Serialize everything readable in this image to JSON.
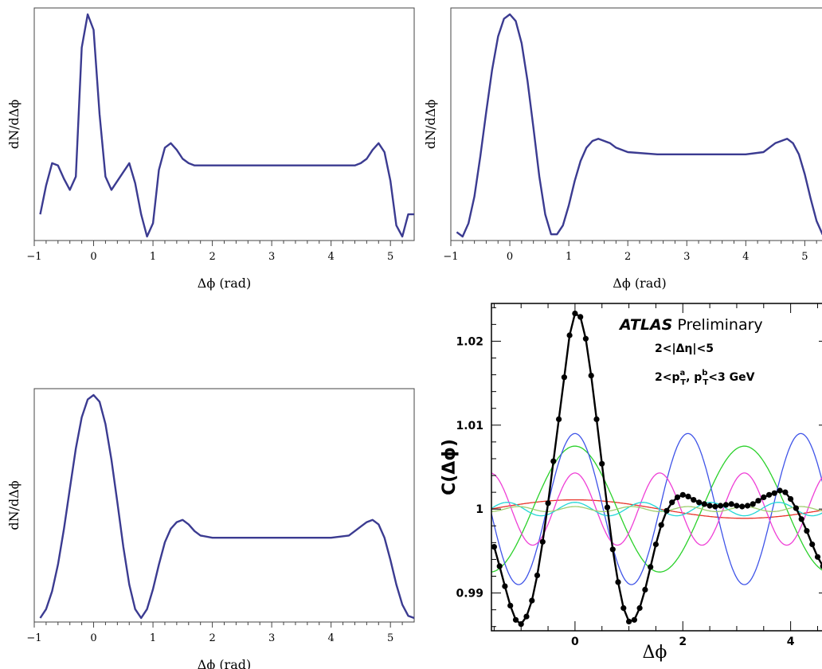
{
  "chart_data": [
    {
      "type": "line",
      "panel": "top-left",
      "title": "",
      "xlabel": "Δϕ (rad)",
      "ylabel": "dN/dΔϕ",
      "xlim": [
        -1,
        5.4
      ],
      "ylim": [
        0,
        1
      ],
      "xticks": [
        -1,
        0,
        1,
        2,
        3,
        4,
        5
      ],
      "yticks": [],
      "grid": false,
      "legend": "none",
      "series": [
        {
          "color": "#3b3b91",
          "x": [
            -0.9,
            -0.8,
            -0.7,
            -0.6,
            -0.5,
            -0.4,
            -0.3,
            -0.2,
            -0.1,
            0,
            0.1,
            0.2,
            0.3,
            0.4,
            0.5,
            0.6,
            0.7,
            0.8,
            0.9,
            1.0,
            1.1,
            1.2,
            1.3,
            1.4,
            1.5,
            1.6,
            1.7,
            1.8,
            2.0,
            2.5,
            3.0,
            3.5,
            4.0,
            4.4,
            4.5,
            4.6,
            4.7,
            4.8,
            4.9,
            5.0,
            5.1,
            5.2,
            5.3,
            5.4
          ],
          "y": [
            0.1,
            0.23,
            0.33,
            0.32,
            0.26,
            0.21,
            0.27,
            0.85,
            1.0,
            0.93,
            0.55,
            0.27,
            0.21,
            0.25,
            0.29,
            0.33,
            0.24,
            0.1,
            0.0,
            0.06,
            0.3,
            0.4,
            0.42,
            0.39,
            0.35,
            0.33,
            0.32,
            0.32,
            0.32,
            0.32,
            0.32,
            0.32,
            0.32,
            0.32,
            0.33,
            0.35,
            0.39,
            0.42,
            0.38,
            0.25,
            0.05,
            0.0,
            0.1,
            0.1
          ]
        }
      ]
    },
    {
      "type": "line",
      "panel": "top-right",
      "title": "",
      "xlabel": "Δϕ (rad)",
      "ylabel": "dN/dΔϕ",
      "xlim": [
        -1,
        5.4
      ],
      "ylim": [
        0,
        1
      ],
      "xticks": [
        -1,
        0,
        1,
        2,
        3,
        4,
        5
      ],
      "yticks": [],
      "grid": false,
      "legend": "none",
      "series": [
        {
          "color": "#3b3b91",
          "x": [
            -0.9,
            -0.8,
            -0.7,
            -0.6,
            -0.5,
            -0.4,
            -0.3,
            -0.2,
            -0.1,
            0,
            0.1,
            0.2,
            0.3,
            0.4,
            0.5,
            0.6,
            0.7,
            0.8,
            0.9,
            1.0,
            1.1,
            1.2,
            1.3,
            1.4,
            1.5,
            1.6,
            1.7,
            1.8,
            2.0,
            2.5,
            3.0,
            3.5,
            4.0,
            4.3,
            4.4,
            4.5,
            4.6,
            4.7,
            4.8,
            4.9,
            5.0,
            5.1,
            5.2,
            5.3,
            5.4
          ],
          "y": [
            0.02,
            0.0,
            0.06,
            0.18,
            0.36,
            0.56,
            0.75,
            0.9,
            0.98,
            1.0,
            0.97,
            0.87,
            0.7,
            0.49,
            0.27,
            0.1,
            0.01,
            0.01,
            0.05,
            0.14,
            0.25,
            0.34,
            0.4,
            0.43,
            0.44,
            0.43,
            0.42,
            0.4,
            0.38,
            0.37,
            0.37,
            0.37,
            0.37,
            0.38,
            0.4,
            0.42,
            0.43,
            0.44,
            0.42,
            0.37,
            0.28,
            0.17,
            0.07,
            0.01,
            0.0
          ]
        }
      ]
    },
    {
      "type": "line",
      "panel": "bottom-left",
      "title": "",
      "xlabel": "Δϕ (rad)",
      "ylabel": "dN/dΔϕ",
      "xlim": [
        -1,
        5.4
      ],
      "ylim": [
        0,
        1
      ],
      "xticks": [
        -1,
        0,
        1,
        2,
        3,
        4,
        5
      ],
      "yticks": [],
      "grid": false,
      "legend": "none",
      "series": [
        {
          "color": "#3b3b91",
          "x": [
            -0.9,
            -0.8,
            -0.7,
            -0.6,
            -0.5,
            -0.4,
            -0.3,
            -0.2,
            -0.1,
            0,
            0.1,
            0.2,
            0.3,
            0.4,
            0.5,
            0.6,
            0.7,
            0.8,
            0.9,
            1.0,
            1.1,
            1.2,
            1.3,
            1.4,
            1.5,
            1.6,
            1.7,
            1.8,
            2.0,
            2.5,
            3.0,
            3.5,
            4.0,
            4.3,
            4.4,
            4.5,
            4.6,
            4.7,
            4.8,
            4.9,
            5.0,
            5.1,
            5.2,
            5.3,
            5.4
          ],
          "y": [
            0.0,
            0.04,
            0.12,
            0.24,
            0.4,
            0.58,
            0.76,
            0.9,
            0.98,
            1.0,
            0.97,
            0.87,
            0.71,
            0.52,
            0.32,
            0.15,
            0.04,
            0.0,
            0.04,
            0.13,
            0.24,
            0.34,
            0.4,
            0.43,
            0.44,
            0.42,
            0.39,
            0.37,
            0.36,
            0.36,
            0.36,
            0.36,
            0.36,
            0.37,
            0.39,
            0.41,
            0.43,
            0.44,
            0.42,
            0.36,
            0.26,
            0.15,
            0.06,
            0.01,
            0.0
          ]
        }
      ]
    },
    {
      "type": "line",
      "panel": "bottom-right",
      "title": "ATLAS Preliminary",
      "annotations": [
        "2<|Δη|<5",
        "2<p",
        "a",
        "T",
        ", p",
        "b",
        "T",
        "<3 GeV"
      ],
      "xlabel": "Δϕ",
      "ylabel": "C(Δϕ)",
      "xlim": [
        -1.55,
        4.7
      ],
      "ylim": [
        0.9855,
        1.0245
      ],
      "xticks": [
        0,
        2,
        4
      ],
      "yticks": [
        0.99,
        1,
        1.01,
        1.02
      ],
      "ytick_labels": [
        "0.99",
        "1",
        "1.01",
        "1.02"
      ],
      "grid": false,
      "legend": "none",
      "series": [
        {
          "harmonic": 1,
          "amplitude": 0.0011,
          "color": "#e8332a"
        },
        {
          "harmonic": 2,
          "amplitude": 0.0075,
          "color": "#2ad12a"
        },
        {
          "harmonic": 3,
          "amplitude": 0.009,
          "color": "#3f54e8"
        },
        {
          "harmonic": 4,
          "amplitude": 0.0043,
          "color": "#ef3fd6"
        },
        {
          "harmonic": 5,
          "amplitude": 0.0008,
          "color": "#22d6d6"
        },
        {
          "harmonic": 6,
          "amplitude": 0.0003,
          "color": "#9fce6e"
        }
      ],
      "data_points": {
        "color": "#000000",
        "x": [
          -1.5,
          -1.4,
          -1.3,
          -1.2,
          -1.1,
          -1.0,
          -0.9,
          -0.8,
          -0.7,
          -0.6,
          -0.5,
          -0.4,
          -0.3,
          -0.2,
          -0.1,
          0.0,
          0.1,
          0.2,
          0.3,
          0.4,
          0.5,
          0.6,
          0.7,
          0.8,
          0.9,
          1.0,
          1.1,
          1.2,
          1.3,
          1.4,
          1.5,
          1.6,
          1.7,
          1.8,
          1.9,
          2.0,
          2.1,
          2.2,
          2.3,
          2.4,
          2.5,
          2.6,
          2.7,
          2.8,
          2.9,
          3.0,
          3.1,
          3.2,
          3.3,
          3.4,
          3.5,
          3.6,
          3.7,
          3.8,
          3.9,
          4.0,
          4.1,
          4.2,
          4.3,
          4.4,
          4.5,
          4.6
        ],
        "y": [
          0.9955,
          0.9932,
          0.9908,
          0.9885,
          0.9868,
          0.9863,
          0.9872,
          0.9891,
          0.9921,
          0.9961,
          1.0007,
          1.0057,
          1.0107,
          1.0157,
          1.0207,
          1.0233,
          1.0229,
          1.0203,
          1.0159,
          1.0107,
          1.0054,
          1.0002,
          0.9952,
          0.9913,
          0.9882,
          0.9866,
          0.9868,
          0.9882,
          0.9904,
          0.9931,
          0.9958,
          0.9981,
          0.9998,
          1.0008,
          1.0014,
          1.0017,
          1.0015,
          1.0011,
          1.0008,
          1.0006,
          1.0004,
          1.0003,
          1.0004,
          1.0005,
          1.0006,
          1.0004,
          1.0003,
          1.0004,
          1.0006,
          1.001,
          1.0014,
          1.0017,
          1.0019,
          1.0022,
          1.002,
          1.0012,
          1.0001,
          0.9988,
          0.9974,
          0.9958,
          0.9943,
          0.9932
        ]
      }
    }
  ]
}
